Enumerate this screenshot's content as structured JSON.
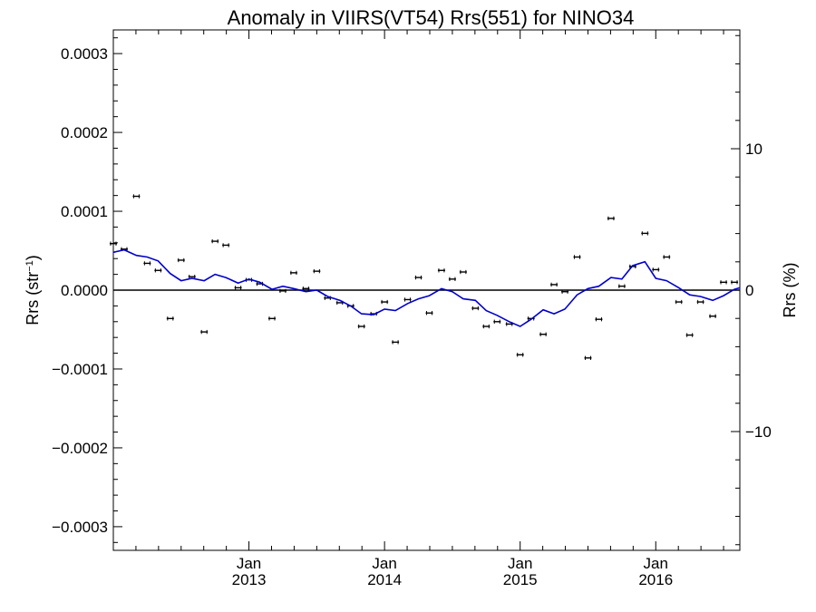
{
  "chart_data": {
    "type": "scatter",
    "title": "Anomaly in VIIRS(VT54) Rrs(551) for NINO34",
    "ylabel_left": "Rrs (str",
    "ylabel_left_sup": "−1",
    "ylabel_left_close": ")",
    "ylabel_right": "Rrs (%)",
    "y_left_range": [
      -0.00033,
      0.00033
    ],
    "y_right_range": [
      -18.4,
      18.4
    ],
    "x_range": [
      2012.0,
      2016.62
    ],
    "y_left_ticks": [
      {
        "value": 0.0003,
        "label": "0.0003"
      },
      {
        "value": 0.0002,
        "label": "0.0002"
      },
      {
        "value": 0.0001,
        "label": "0.0001"
      },
      {
        "value": 0.0,
        "label": "0.0000"
      },
      {
        "value": -0.0001,
        "label": "−0.0001"
      },
      {
        "value": -0.0002,
        "label": "−0.0002"
      },
      {
        "value": -0.0003,
        "label": "−0.0003"
      }
    ],
    "y_right_ticks": [
      {
        "value": 10,
        "label": "10"
      },
      {
        "value": 0,
        "label": "0"
      },
      {
        "value": -10,
        "label": "−10"
      }
    ],
    "x_major_ticks": [
      {
        "value": 2013.0,
        "month": "Jan",
        "year": "2013"
      },
      {
        "value": 2014.0,
        "month": "Jan",
        "year": "2014"
      },
      {
        "value": 2015.0,
        "month": "Jan",
        "year": "2015"
      },
      {
        "value": 2016.0,
        "month": "Jan",
        "year": "2016"
      }
    ],
    "zero_line": true,
    "grid": false,
    "legend": "none",
    "series": [
      {
        "kind": "points_with_error_bars",
        "color": "#000000",
        "points": [
          [
            2012.0,
            5.9e-05
          ],
          [
            2012.08,
            5.2e-05
          ],
          [
            2012.17,
            0.000119
          ],
          [
            2012.25,
            3.4e-05
          ],
          [
            2012.33,
            2.5e-05
          ],
          [
            2012.42,
            -3.6e-05
          ],
          [
            2012.5,
            3.8e-05
          ],
          [
            2012.58,
            1.7e-05
          ],
          [
            2012.67,
            -5.3e-05
          ],
          [
            2012.75,
            6.2e-05
          ],
          [
            2012.83,
            5.7e-05
          ],
          [
            2012.92,
            3e-06
          ],
          [
            2013.0,
            1.3e-05
          ],
          [
            2013.08,
            8e-06
          ],
          [
            2013.17,
            -3.6e-05
          ],
          [
            2013.25,
            -1e-06
          ],
          [
            2013.33,
            2.2e-05
          ],
          [
            2013.42,
            2e-06
          ],
          [
            2013.5,
            2.4e-05
          ],
          [
            2013.58,
            -1e-05
          ],
          [
            2013.67,
            -1.6e-05
          ],
          [
            2013.75,
            -2e-05
          ],
          [
            2013.83,
            -4.6e-05
          ],
          [
            2013.92,
            -3e-05
          ],
          [
            2014.0,
            -1.5e-05
          ],
          [
            2014.08,
            -6.6e-05
          ],
          [
            2014.17,
            -1.2e-05
          ],
          [
            2014.25,
            1.6e-05
          ],
          [
            2014.33,
            -2.9e-05
          ],
          [
            2014.42,
            2.5e-05
          ],
          [
            2014.5,
            1.4e-05
          ],
          [
            2014.58,
            2.3e-05
          ],
          [
            2014.67,
            -2.3e-05
          ],
          [
            2014.75,
            -4.6e-05
          ],
          [
            2014.83,
            -4e-05
          ],
          [
            2014.92,
            -4.3e-05
          ],
          [
            2015.0,
            -8.2e-05
          ],
          [
            2015.08,
            -3.6e-05
          ],
          [
            2015.17,
            -5.6e-05
          ],
          [
            2015.25,
            7e-06
          ],
          [
            2015.33,
            -2e-06
          ],
          [
            2015.42,
            4.2e-05
          ],
          [
            2015.5,
            -8.6e-05
          ],
          [
            2015.58,
            -3.7e-05
          ],
          [
            2015.67,
            9.1e-05
          ],
          [
            2015.75,
            5e-06
          ],
          [
            2015.83,
            3e-05
          ],
          [
            2015.92,
            7.2e-05
          ],
          [
            2016.0,
            2.6e-05
          ],
          [
            2016.08,
            4.2e-05
          ],
          [
            2016.17,
            -1.5e-05
          ],
          [
            2016.25,
            -5.7e-05
          ],
          [
            2016.33,
            -1.5e-05
          ],
          [
            2016.42,
            -3.3e-05
          ],
          [
            2016.5,
            1e-05
          ],
          [
            2016.58,
            1e-05
          ]
        ],
        "error": 2.5e-06
      },
      {
        "kind": "line",
        "color": "#0000cc",
        "points": [
          [
            2012.0,
            4.8e-05
          ],
          [
            2012.08,
            5.1e-05
          ],
          [
            2012.17,
            4.4e-05
          ],
          [
            2012.25,
            4.2e-05
          ],
          [
            2012.33,
            3.7e-05
          ],
          [
            2012.42,
            2.1e-05
          ],
          [
            2012.5,
            1.2e-05
          ],
          [
            2012.58,
            1.5e-05
          ],
          [
            2012.67,
            1.2e-05
          ],
          [
            2012.75,
            2e-05
          ],
          [
            2012.83,
            1.6e-05
          ],
          [
            2012.92,
            9e-06
          ],
          [
            2013.0,
            1.4e-05
          ],
          [
            2013.08,
            1e-05
          ],
          [
            2013.17,
            1e-06
          ],
          [
            2013.25,
            5e-06
          ],
          [
            2013.33,
            2e-06
          ],
          [
            2013.42,
            -2e-06
          ],
          [
            2013.5,
            0.0
          ],
          [
            2013.58,
            -8e-06
          ],
          [
            2013.67,
            -1.3e-05
          ],
          [
            2013.75,
            -2e-05
          ],
          [
            2013.83,
            -3e-05
          ],
          [
            2013.92,
            -3.1e-05
          ],
          [
            2014.0,
            -2.4e-05
          ],
          [
            2014.08,
            -2.6e-05
          ],
          [
            2014.17,
            -1.7e-05
          ],
          [
            2014.25,
            -1.1e-05
          ],
          [
            2014.33,
            -7e-06
          ],
          [
            2014.42,
            2e-06
          ],
          [
            2014.5,
            -2e-06
          ],
          [
            2014.58,
            -1.1e-05
          ],
          [
            2014.67,
            -1.3e-05
          ],
          [
            2014.75,
            -2.6e-05
          ],
          [
            2014.83,
            -3.2e-05
          ],
          [
            2014.92,
            -4e-05
          ],
          [
            2015.0,
            -4.6e-05
          ],
          [
            2015.08,
            -3.7e-05
          ],
          [
            2015.17,
            -2.5e-05
          ],
          [
            2015.25,
            -3e-05
          ],
          [
            2015.33,
            -2.4e-05
          ],
          [
            2015.42,
            -6e-06
          ],
          [
            2015.5,
            2e-06
          ],
          [
            2015.58,
            5e-06
          ],
          [
            2015.67,
            1.6e-05
          ],
          [
            2015.75,
            1.4e-05
          ],
          [
            2015.83,
            3.1e-05
          ],
          [
            2015.92,
            3.6e-05
          ],
          [
            2016.0,
            1.5e-05
          ],
          [
            2016.08,
            1.2e-05
          ],
          [
            2016.17,
            3e-06
          ],
          [
            2016.25,
            -6e-06
          ],
          [
            2016.33,
            -8e-06
          ],
          [
            2016.42,
            -1.3e-05
          ],
          [
            2016.5,
            -7e-06
          ],
          [
            2016.58,
            1e-06
          ],
          [
            2016.62,
            3e-06
          ]
        ]
      }
    ]
  }
}
